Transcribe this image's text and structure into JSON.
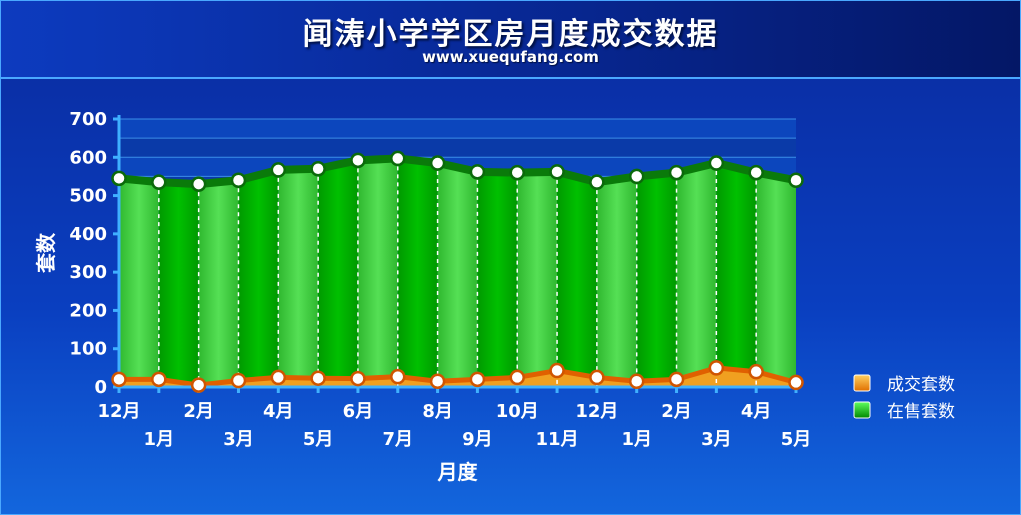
{
  "header": {
    "title": "闻涛小学学区房月度成交数据",
    "subtitle": "www.xuequfang.com"
  },
  "chart_data": {
    "type": "area",
    "title": "闻涛小学学区房月度成交数据",
    "subtitle": "www.xuequfang.com",
    "xlabel": "月度",
    "ylabel": "套数",
    "ylim": [
      0,
      700
    ],
    "yticks": [
      "0",
      "100",
      "200",
      "300",
      "400",
      "500",
      "600",
      "700"
    ],
    "grid": true,
    "legend_position": "right",
    "categories": [
      "12月",
      "1月",
      "2月",
      "3月",
      "4月",
      "5月",
      "6月",
      "7月",
      "8月",
      "9月",
      "10月",
      "11月",
      "12月",
      "1月",
      "2月",
      "3月",
      "4月",
      "5月"
    ],
    "series": [
      {
        "name": "成交套数",
        "color": "#ff8c00",
        "values": [
          20,
          20,
          5,
          17,
          25,
          23,
          22,
          27,
          15,
          20,
          25,
          43,
          25,
          15,
          20,
          50,
          40,
          12
        ]
      },
      {
        "name": "在售套数",
        "color": "#00cc00",
        "values": [
          545,
          535,
          530,
          540,
          567,
          570,
          592,
          597,
          585,
          562,
          560,
          562,
          535,
          550,
          560,
          585,
          560,
          540
        ]
      }
    ]
  }
}
